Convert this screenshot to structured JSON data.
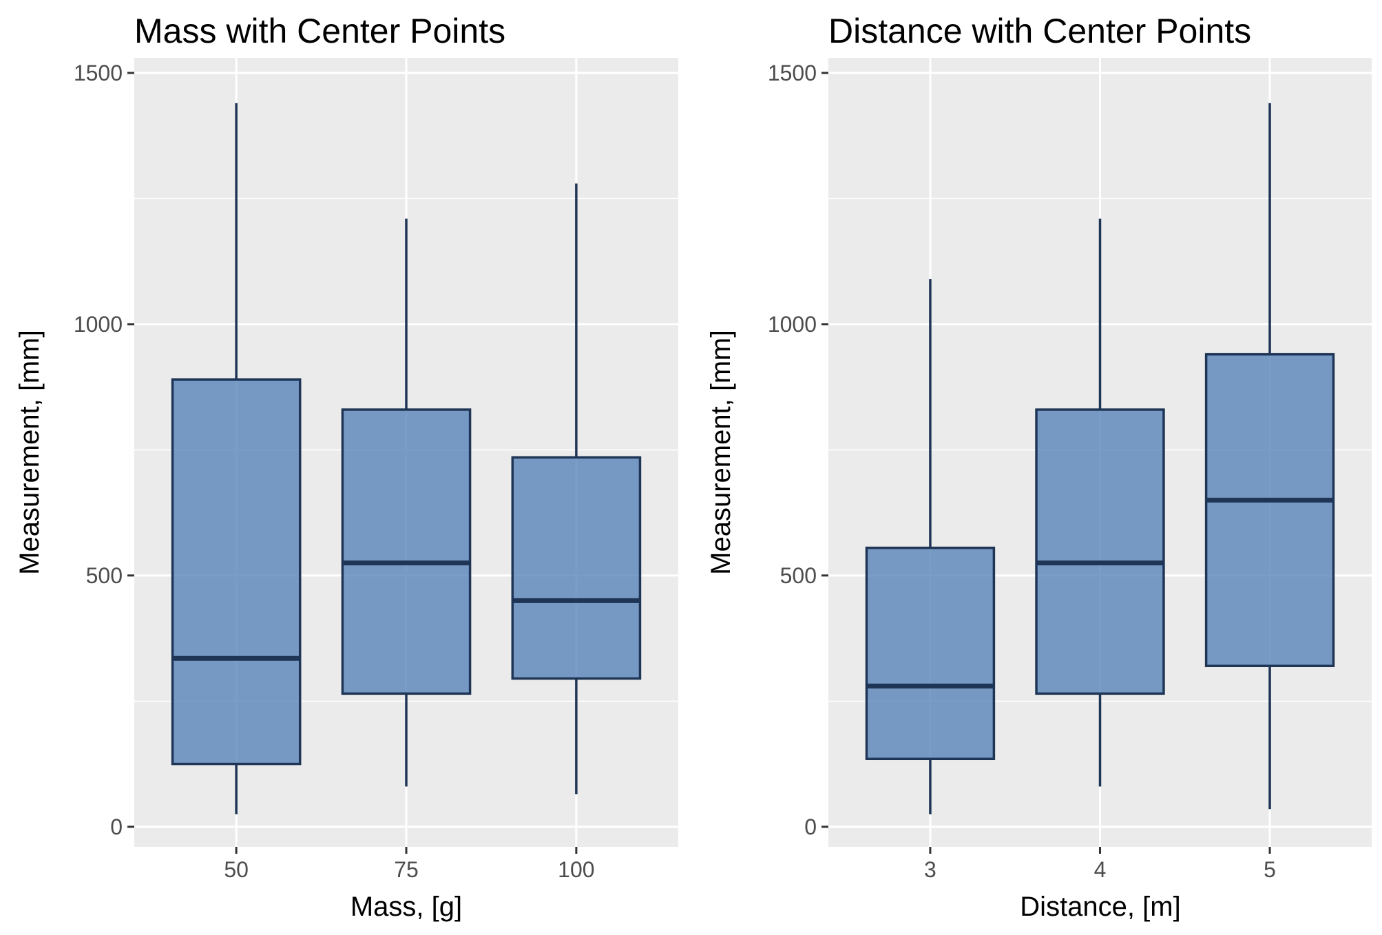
{
  "colors": {
    "box_fill": "#527fb7",
    "box_outline": "#1f3556",
    "panel_background": "#ebebeb",
    "gridline": "#ffffff",
    "tick_label": "#4d4d4d"
  },
  "chart_data": [
    {
      "type": "boxplot",
      "title": "Mass with Center Points",
      "xlabel": "Mass, [g]",
      "ylabel": "Measurement, [mm]",
      "categories": [
        "50",
        "75",
        "100"
      ],
      "ylim": [
        -40,
        1530
      ],
      "y_ticks": [
        "0",
        "500",
        "1000",
        "1500"
      ],
      "grid": true,
      "boxes": [
        {
          "category": "50",
          "min": 25,
          "q1": 125,
          "median": 335,
          "q3": 890,
          "max": 1440
        },
        {
          "category": "75",
          "min": 80,
          "q1": 265,
          "median": 525,
          "q3": 830,
          "max": 1210
        },
        {
          "category": "100",
          "min": 65,
          "q1": 295,
          "median": 450,
          "q3": 735,
          "max": 1280
        }
      ]
    },
    {
      "type": "boxplot",
      "title": "Distance with Center Points",
      "xlabel": "Distance, [m]",
      "ylabel": "Measurement, [mm]",
      "categories": [
        "3",
        "4",
        "5"
      ],
      "ylim": [
        -40,
        1530
      ],
      "y_ticks": [
        "0",
        "500",
        "1000",
        "1500"
      ],
      "grid": true,
      "boxes": [
        {
          "category": "3",
          "min": 25,
          "q1": 135,
          "median": 280,
          "q3": 555,
          "max": 1090
        },
        {
          "category": "4",
          "min": 80,
          "q1": 265,
          "median": 525,
          "q3": 830,
          "max": 1210
        },
        {
          "category": "5",
          "min": 35,
          "q1": 320,
          "median": 650,
          "q3": 940,
          "max": 1440
        }
      ]
    }
  ]
}
